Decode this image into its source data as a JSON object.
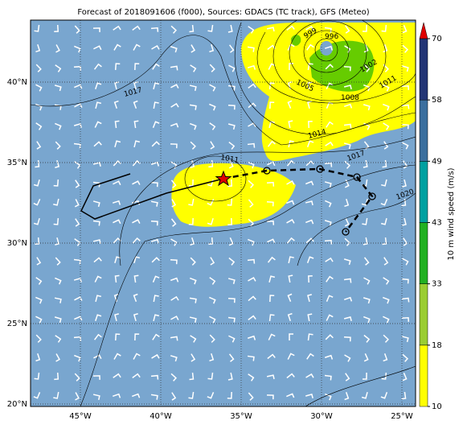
{
  "title": "Forecast of 2018091606 (f000), Sources: GDACS (TC track), GFS (Meteo)",
  "map": {
    "lon_labels": [
      "45°W",
      "40°W",
      "35°W",
      "30°W",
      "25°W"
    ],
    "lat_labels": [
      "40°N",
      "35°N",
      "30°N",
      "25°N",
      "20°N"
    ],
    "isobar_labels": [
      "999",
      "996",
      "1005",
      "1002",
      "1011",
      "1008",
      "1014",
      "1017",
      "1011",
      "1017",
      "1020"
    ]
  },
  "colorbar": {
    "label": "10 m wind speed (m/s)",
    "ticks": [
      10,
      18,
      33,
      43,
      49,
      58,
      70
    ],
    "colors": [
      "#ffff00",
      "#9acd32",
      "#22b022",
      "#00a0a0",
      "#3b6f9e",
      "#233575"
    ],
    "extend_color": "#e00000"
  }
}
